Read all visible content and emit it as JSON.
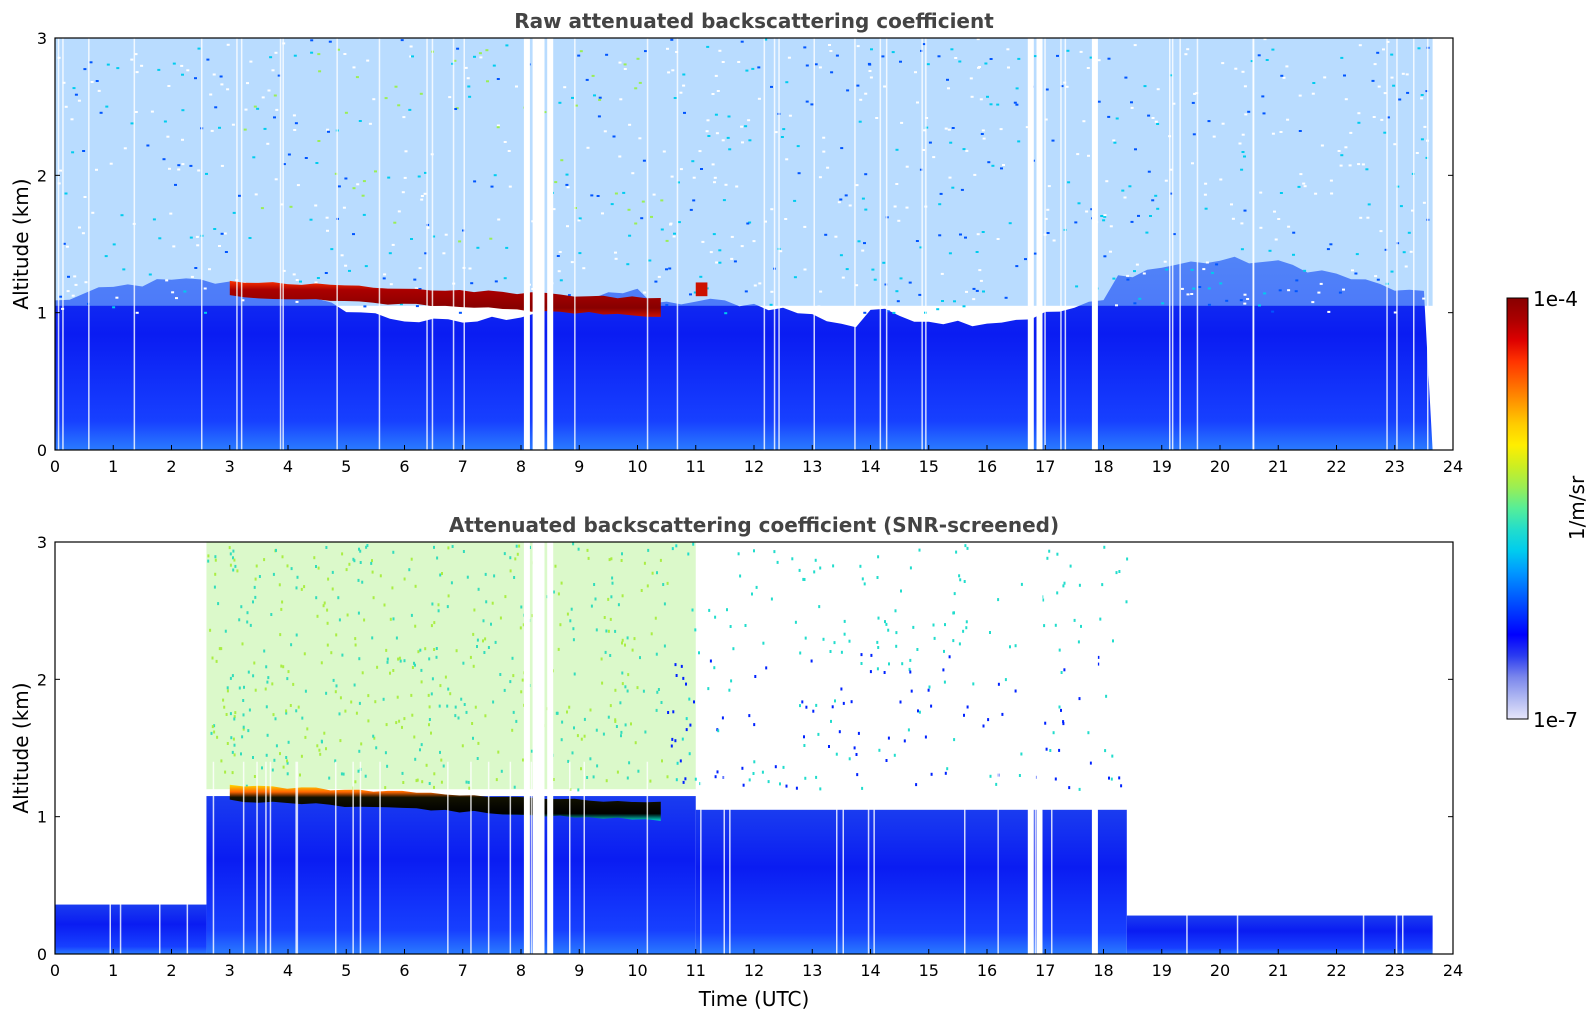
{
  "chart_data": [
    {
      "type": "heatmap",
      "title": "Raw attenuated backscattering coefficient",
      "xlabel": "",
      "ylabel": "Altitude (km)",
      "xlim": [
        0,
        24
      ],
      "ylim": [
        0,
        3
      ],
      "xticks": [
        "0",
        "1",
        "2",
        "3",
        "4",
        "5",
        "6",
        "7",
        "8",
        "9",
        "10",
        "11",
        "12",
        "13",
        "14",
        "15",
        "16",
        "17",
        "18",
        "19",
        "20",
        "21",
        "22",
        "23",
        "24"
      ],
      "yticks": [
        "0",
        "1",
        "2",
        "3"
      ],
      "data_end_x": 23.65,
      "features": {
        "cloud_layer": {
          "x_start": 3.0,
          "x_end": 10.4,
          "y_top_start": 1.23,
          "y_top_end": 1.1,
          "y_bottom_start": 1.12,
          "y_bottom_end": 0.97,
          "value": "1e-4"
        },
        "cloud_fragment": {
          "x_start": 11.0,
          "x_end": 11.2,
          "y": 1.17
        },
        "data_gaps_x": [
          8.05,
          8.2,
          8.3,
          8.45,
          16.7,
          16.85,
          17.8
        ]
      }
    },
    {
      "type": "heatmap",
      "title": "Attenuated backscattering coefficient (SNR-screened)",
      "xlabel": "Time (UTC)",
      "ylabel": "Altitude (km)",
      "xlim": [
        0,
        24
      ],
      "ylim": [
        0,
        3
      ],
      "xticks": [
        "0",
        "1",
        "2",
        "3",
        "4",
        "5",
        "6",
        "7",
        "8",
        "9",
        "10",
        "11",
        "12",
        "13",
        "14",
        "15",
        "16",
        "17",
        "18",
        "19",
        "20",
        "21",
        "22",
        "23",
        "24"
      ],
      "yticks": [
        "0",
        "1",
        "2",
        "3"
      ],
      "data_end_x": 23.65,
      "features": {
        "cloud_layer": {
          "x_start": 3.0,
          "x_end": 10.4,
          "y_top_start": 1.23,
          "y_top_end": 1.1,
          "y_bottom_start": 1.12,
          "y_bottom_end": 0.97
        },
        "screened_ceiling": [
          {
            "x_start": 0.0,
            "x_end": 2.6,
            "y_top": 0.36
          },
          {
            "x_start": 2.6,
            "x_end": 11.0,
            "y_top": 3.0
          },
          {
            "x_start": 11.0,
            "x_end": 18.4,
            "y_top": 3.0
          },
          {
            "x_start": 18.4,
            "x_end": 23.65,
            "y_top": 0.28
          }
        ]
      }
    }
  ],
  "colorbar": {
    "label": "1/m/sr",
    "min_label": "1e-7",
    "max_label": "1e-4",
    "colors": [
      "#e6e6fa",
      "#b0b8f2",
      "#7a86ec",
      "#2b3cf0",
      "#0000ff",
      "#0033ff",
      "#0066ff",
      "#0099ff",
      "#00ccee",
      "#22ddcc",
      "#55ee99",
      "#99ee55",
      "#ccee22",
      "#ffee00",
      "#ffcc00",
      "#ff9900",
      "#ff6600",
      "#ff3300",
      "#dd0000",
      "#aa0000",
      "#880000"
    ]
  }
}
